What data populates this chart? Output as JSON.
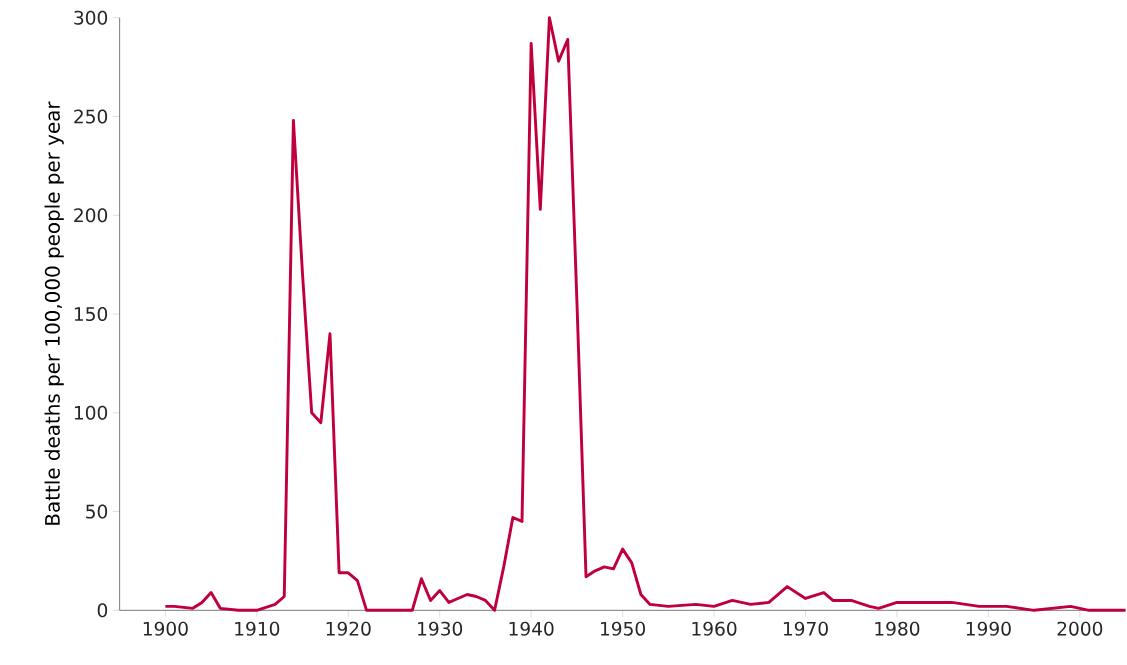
{
  "chart_data": {
    "type": "line",
    "ylabel": "Battle deaths per 100,000 people per year",
    "x": [
      1900,
      1901,
      1903,
      1904,
      1905,
      1906,
      1908,
      1910,
      1912,
      1913,
      1914,
      1915,
      1916,
      1917,
      1918,
      1919,
      1920,
      1921,
      1922,
      1927,
      1928,
      1929,
      1930,
      1931,
      1932,
      1933,
      1934,
      1935,
      1936,
      1937,
      1938,
      1939,
      1940,
      1941,
      1942,
      1943,
      1944,
      1945,
      1946,
      1947,
      1948,
      1949,
      1950,
      1951,
      1952,
      1953,
      1955,
      1958,
      1960,
      1962,
      1964,
      1966,
      1968,
      1970,
      1972,
      1973,
      1975,
      1977,
      1978,
      1980,
      1983,
      1986,
      1989,
      1992,
      1995,
      1999,
      2001,
      2005
    ],
    "series": [
      {
        "color": "#c0003c",
        "values": [
          2,
          2,
          1,
          4,
          9,
          1,
          0,
          0,
          3,
          7,
          248,
          170,
          100,
          95,
          140,
          19,
          19,
          15,
          0,
          0,
          16,
          5,
          10,
          4,
          6,
          8,
          7,
          5,
          0,
          22,
          47,
          45,
          287,
          203,
          300,
          278,
          289,
          157,
          17,
          20,
          22,
          21,
          31,
          24,
          8,
          3,
          2,
          3,
          2,
          5,
          3,
          4,
          12,
          6,
          9,
          5,
          5,
          2,
          1,
          4,
          4,
          4,
          2,
          2,
          0,
          2,
          0,
          0
        ]
      }
    ],
    "xlim": [
      1895,
      2005
    ],
    "ylim": [
      0,
      300
    ],
    "xticks": [
      1900,
      1910,
      1920,
      1930,
      1940,
      1950,
      1960,
      1970,
      1980,
      1990,
      2000
    ],
    "yticks": [
      0,
      50,
      100,
      150,
      200,
      250,
      300
    ],
    "grid": false,
    "marker": "none",
    "line_style": "solid"
  }
}
